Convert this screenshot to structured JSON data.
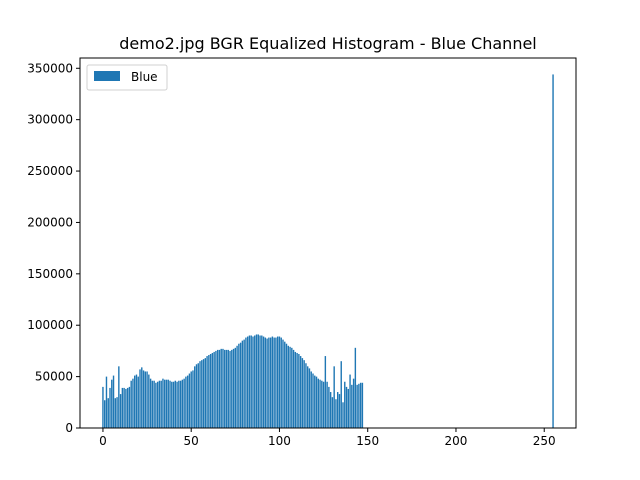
{
  "chart_data": {
    "type": "bar",
    "title": "demo2.jpg BGR Equalized Histogram - Blue Channel",
    "xlabel": "",
    "ylabel": "",
    "xlim": [
      -13,
      268
    ],
    "ylim": [
      0,
      360000
    ],
    "x_ticks": [
      0,
      50,
      100,
      150,
      200,
      250
    ],
    "y_ticks": [
      0,
      50000,
      100000,
      150000,
      200000,
      250000,
      300000,
      350000
    ],
    "grid": false,
    "legend_position": "top-left",
    "series": [
      {
        "name": "Blue",
        "color": "#1f77b4",
        "points": [
          [
            0,
            40000
          ],
          [
            1,
            27000
          ],
          [
            2,
            50000
          ],
          [
            3,
            29000
          ],
          [
            4,
            39000
          ],
          [
            5,
            47000
          ],
          [
            6,
            51000
          ],
          [
            7,
            29000
          ],
          [
            8,
            30000
          ],
          [
            9,
            60000
          ],
          [
            10,
            33000
          ],
          [
            11,
            39000
          ],
          [
            12,
            39000
          ],
          [
            13,
            38000
          ],
          [
            14,
            39000
          ],
          [
            15,
            40000
          ],
          [
            16,
            46000
          ],
          [
            17,
            48000
          ],
          [
            18,
            51000
          ],
          [
            19,
            52000
          ],
          [
            20,
            50000
          ],
          [
            21,
            57000
          ],
          [
            22,
            59000
          ],
          [
            23,
            56000
          ],
          [
            24,
            55000
          ],
          [
            25,
            55000
          ],
          [
            26,
            52000
          ],
          [
            27,
            48000
          ],
          [
            28,
            46000
          ],
          [
            29,
            46000
          ],
          [
            30,
            44000
          ],
          [
            31,
            45000
          ],
          [
            32,
            46000
          ],
          [
            33,
            46000
          ],
          [
            34,
            48000
          ],
          [
            35,
            47000
          ],
          [
            36,
            47000
          ],
          [
            37,
            47000
          ],
          [
            38,
            46000
          ],
          [
            39,
            45000
          ],
          [
            40,
            45000
          ],
          [
            41,
            46000
          ],
          [
            42,
            45000
          ],
          [
            43,
            46000
          ],
          [
            44,
            46000
          ],
          [
            45,
            47000
          ],
          [
            46,
            48000
          ],
          [
            47,
            50000
          ],
          [
            48,
            51000
          ],
          [
            49,
            53000
          ],
          [
            50,
            55000
          ],
          [
            51,
            56000
          ],
          [
            52,
            60000
          ],
          [
            53,
            62000
          ],
          [
            54,
            63000
          ],
          [
            55,
            65000
          ],
          [
            56,
            66000
          ],
          [
            57,
            67000
          ],
          [
            58,
            68000
          ],
          [
            59,
            70000
          ],
          [
            60,
            71000
          ],
          [
            61,
            72000
          ],
          [
            62,
            73000
          ],
          [
            63,
            74000
          ],
          [
            64,
            75000
          ],
          [
            65,
            76000
          ],
          [
            66,
            76000
          ],
          [
            67,
            77000
          ],
          [
            68,
            77000
          ],
          [
            69,
            76000
          ],
          [
            70,
            76000
          ],
          [
            71,
            76000
          ],
          [
            72,
            75000
          ],
          [
            73,
            76000
          ],
          [
            74,
            77000
          ],
          [
            75,
            78000
          ],
          [
            76,
            80000
          ],
          [
            77,
            82000
          ],
          [
            78,
            83000
          ],
          [
            79,
            85000
          ],
          [
            80,
            86000
          ],
          [
            81,
            88000
          ],
          [
            82,
            89000
          ],
          [
            83,
            90000
          ],
          [
            84,
            90000
          ],
          [
            85,
            89000
          ],
          [
            86,
            90000
          ],
          [
            87,
            91000
          ],
          [
            88,
            91000
          ],
          [
            89,
            90000
          ],
          [
            90,
            90000
          ],
          [
            91,
            89000
          ],
          [
            92,
            88000
          ],
          [
            93,
            87000
          ],
          [
            94,
            88000
          ],
          [
            95,
            88000
          ],
          [
            96,
            89000
          ],
          [
            97,
            88000
          ],
          [
            98,
            88000
          ],
          [
            99,
            89000
          ],
          [
            100,
            89000
          ],
          [
            101,
            88000
          ],
          [
            102,
            86000
          ],
          [
            103,
            84000
          ],
          [
            104,
            82000
          ],
          [
            105,
            80000
          ],
          [
            106,
            79000
          ],
          [
            107,
            78000
          ],
          [
            108,
            76000
          ],
          [
            109,
            74000
          ],
          [
            110,
            73000
          ],
          [
            111,
            72000
          ],
          [
            112,
            70000
          ],
          [
            113,
            68000
          ],
          [
            114,
            66000
          ],
          [
            115,
            63000
          ],
          [
            116,
            60000
          ],
          [
            117,
            58000
          ],
          [
            118,
            55000
          ],
          [
            119,
            53000
          ],
          [
            120,
            51000
          ],
          [
            121,
            50000
          ],
          [
            122,
            48000
          ],
          [
            123,
            47000
          ],
          [
            124,
            46000
          ],
          [
            125,
            45000
          ],
          [
            126,
            70000
          ],
          [
            127,
            45000
          ],
          [
            128,
            40000
          ],
          [
            129,
            35000
          ],
          [
            130,
            30000
          ],
          [
            131,
            60000
          ],
          [
            132,
            28000
          ],
          [
            133,
            35000
          ],
          [
            134,
            33000
          ],
          [
            135,
            65000
          ],
          [
            136,
            25000
          ],
          [
            137,
            45000
          ],
          [
            138,
            40000
          ],
          [
            139,
            38000
          ],
          [
            140,
            52000
          ],
          [
            141,
            42000
          ],
          [
            142,
            48000
          ],
          [
            143,
            78000
          ],
          [
            144,
            42000
          ],
          [
            145,
            43000
          ],
          [
            146,
            44000
          ],
          [
            147,
            44000
          ],
          [
            255,
            344000
          ]
        ]
      }
    ]
  }
}
